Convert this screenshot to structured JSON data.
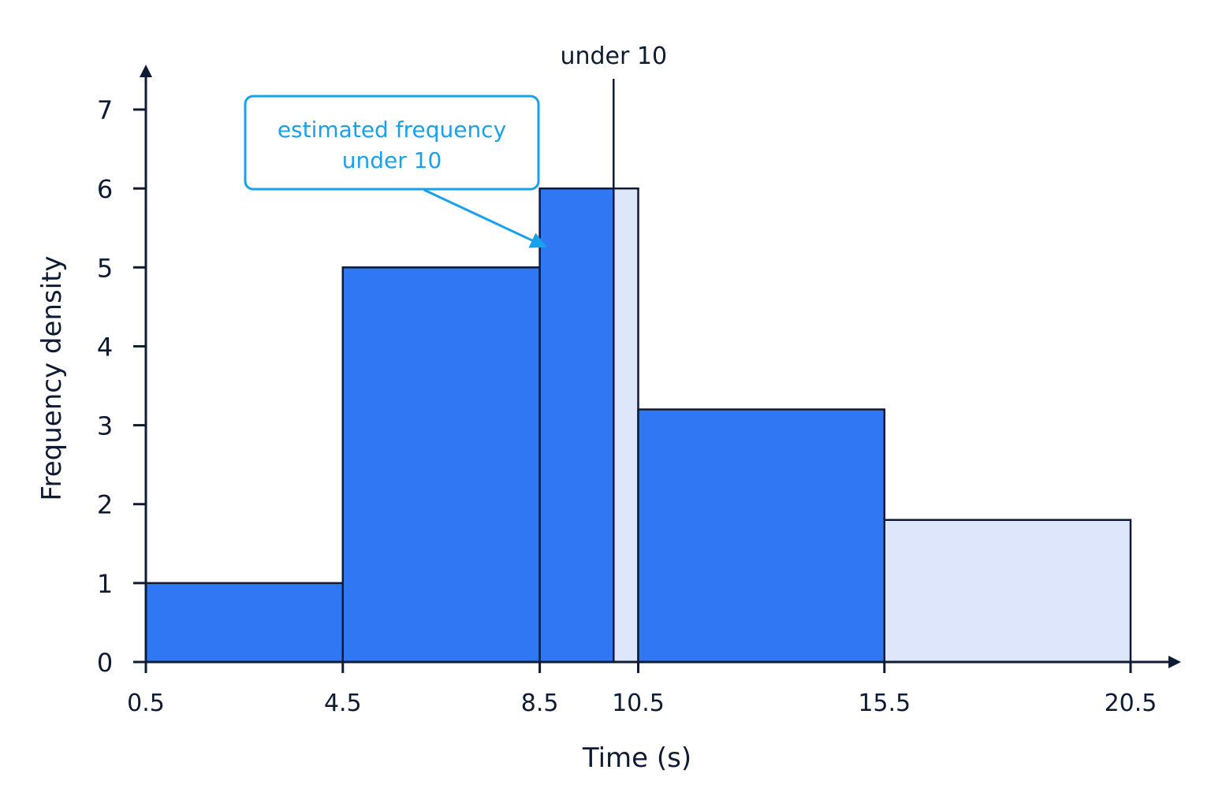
{
  "chart_data": {
    "type": "bar",
    "xlabel": "Time (s)",
    "ylabel": "Frequency density",
    "x_ticks": [
      "0.5",
      "4.5",
      "8.5",
      "10.5",
      "15.5",
      "20.5"
    ],
    "y_ticks": [
      "0",
      "1",
      "2",
      "3",
      "4",
      "5",
      "6",
      "7"
    ],
    "xlim": [
      0.5,
      20.5
    ],
    "ylim": [
      0,
      7
    ],
    "grid": false,
    "bars": [
      {
        "x_start": 0.5,
        "x_end": 4.5,
        "value": 1,
        "shaded": true
      },
      {
        "x_start": 4.5,
        "x_end": 8.5,
        "value": 5,
        "shaded": true
      },
      {
        "x_start": 8.5,
        "x_end": 10,
        "value": 6,
        "shaded": true
      },
      {
        "x_start": 10,
        "x_end": 10.5,
        "value": 6,
        "shaded": false
      },
      {
        "x_start": 10.5,
        "x_end": 15.5,
        "value": 3.2,
        "shaded": true
      },
      {
        "x_start": 15.5,
        "x_end": 20.5,
        "value": 1.8,
        "shaded": false
      }
    ],
    "marker": {
      "x": 10,
      "label": "under 10"
    },
    "annotation": {
      "lines": [
        "estimated frequency",
        "under 10"
      ],
      "points_to_x": 8.5,
      "points_to_y": 5.3
    },
    "colors": {
      "shaded": "#3078f3",
      "unshaded": "#dde6fa",
      "outline": "#0f1b33",
      "axis": "#0f1b33",
      "annotation": "#1aa1ec"
    }
  }
}
